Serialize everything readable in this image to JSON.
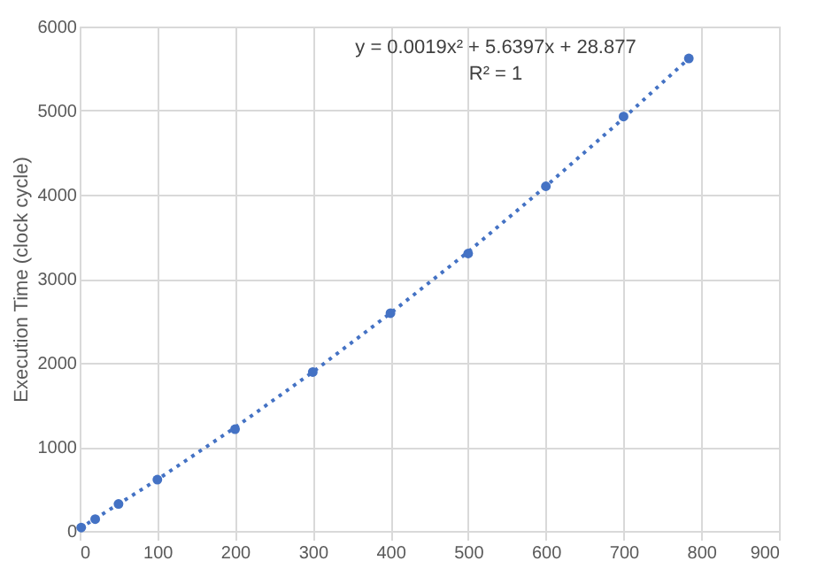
{
  "chart_data": {
    "type": "scatter",
    "ylabel": "Execution Time (clock cycle)",
    "xlim": [
      0,
      900
    ],
    "xticks": [
      0,
      100,
      200,
      300,
      400,
      500,
      600,
      700,
      800,
      900
    ],
    "ylim": [
      0,
      6000
    ],
    "yticks": [
      0,
      1000,
      2000,
      3000,
      4000,
      5000,
      6000
    ],
    "grid": true,
    "marker": "circle",
    "series": [
      {
        "color": "#4472c4",
        "x": [
          2,
          20,
          50,
          100,
          200,
          300,
          400,
          500,
          600,
          700,
          784
        ],
        "values": [
          40,
          140,
          320,
          610,
          1210,
          1890,
          2590,
          3300,
          4100,
          4930,
          5620
        ]
      },
      {
        "type": "line",
        "line_style": "dotted",
        "marker": "none",
        "color": "#4472c4",
        "x": [
          0,
          100,
          200,
          300,
          400,
          500,
          600,
          700,
          784
        ],
        "values": [
          30,
          610,
          1230,
          1890,
          2590,
          3320,
          4100,
          4910,
          5620
        ]
      }
    ],
    "annotations": [
      "y = 0.0019x² + 5.6397x + 28.877",
      "R² = 1"
    ]
  }
}
